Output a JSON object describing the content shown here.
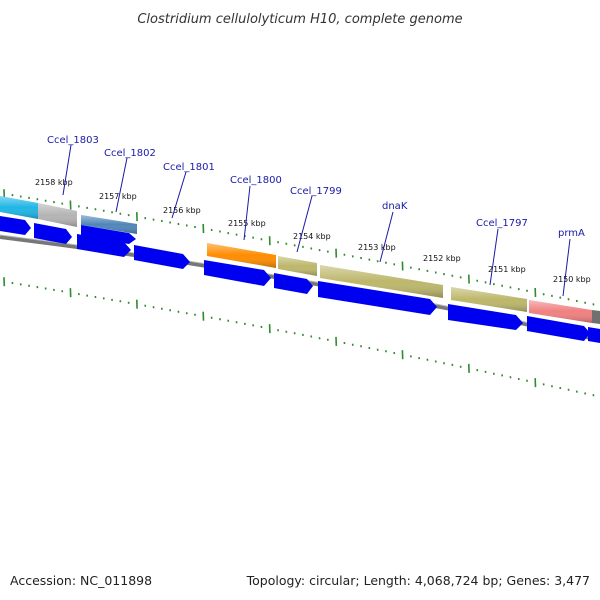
{
  "title": "Clostridium cellulolyticum H10, complete genome",
  "footer": {
    "accession": "Accession: NC_011898",
    "summary": "Topology: circular; Length: 4,068,724 bp; Genes: 3,477"
  },
  "colors": {
    "cds_arrow": "#0000f0",
    "tick": "#2e8b2e",
    "backbone": "#7a7a7a",
    "label": "#1a1aa6"
  },
  "kbp_labels": [
    "2158 kbp",
    "2157 kbp",
    "2156 kbp",
    "2155 kbp",
    "2154 kbp",
    "2153 kbp",
    "2152 kbp",
    "2151 kbp",
    "2150 kbp"
  ],
  "genes": [
    {
      "name": "Ccel_1803",
      "color": "#b4b4b4"
    },
    {
      "name": "Ccel_1802",
      "color": "#4f86b8"
    },
    {
      "name": "Ccel_1801",
      "color": ""
    },
    {
      "name": "Ccel_1800",
      "color": "#ff8c00"
    },
    {
      "name": "Ccel_1799",
      "color": "#bdb76b"
    },
    {
      "name": "dnaK",
      "color": "#bdb76b"
    },
    {
      "name": "Ccel_1797",
      "color": "#bdb76b"
    },
    {
      "name": "prmA",
      "color": "#f08080"
    }
  ],
  "extra_features": [
    {
      "name": "edge-cyan-feature",
      "color": "#1fb6e6"
    },
    {
      "name": "edge-gray-feature",
      "color": "#707070"
    }
  ]
}
